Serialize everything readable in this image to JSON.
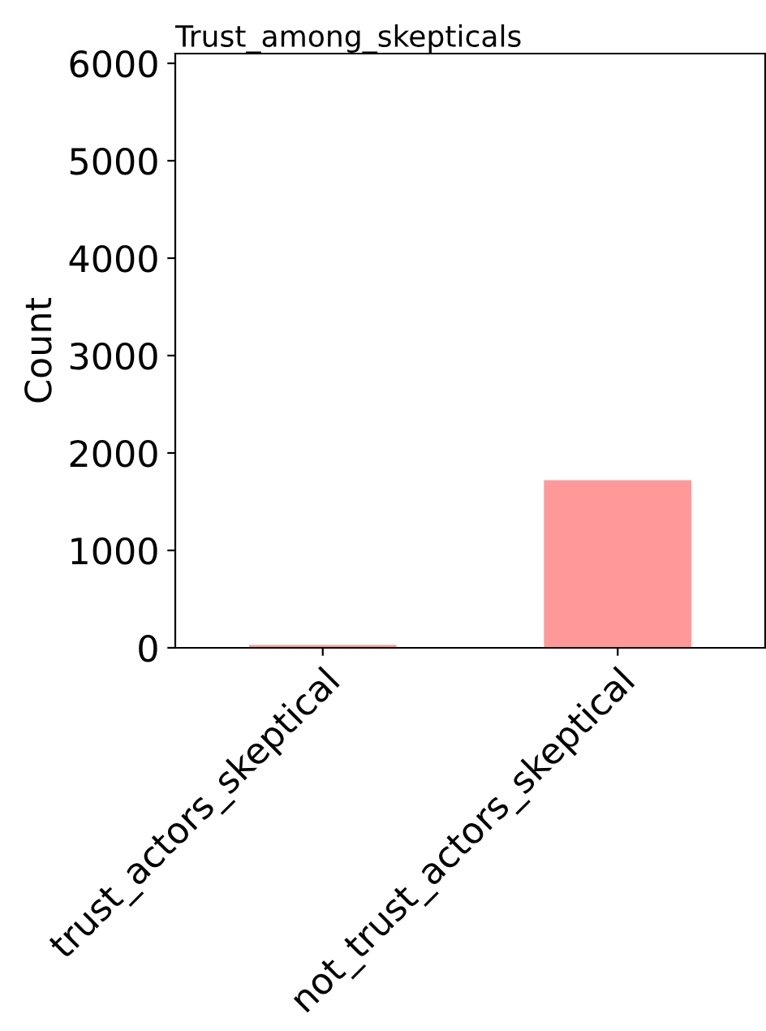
{
  "chart_data": {
    "type": "bar",
    "title": "Trust_among_skepticals",
    "ylabel": "Count",
    "categories": [
      "trust_actors_skeptical",
      "not_trust_actors_skeptical"
    ],
    "values": [
      30,
      1720
    ],
    "color": "#ff9999",
    "ylim": [
      0,
      6100
    ],
    "yticks": [
      0,
      1000,
      2000,
      3000,
      4000,
      5000,
      6000
    ],
    "grid": false,
    "legend": false
  }
}
